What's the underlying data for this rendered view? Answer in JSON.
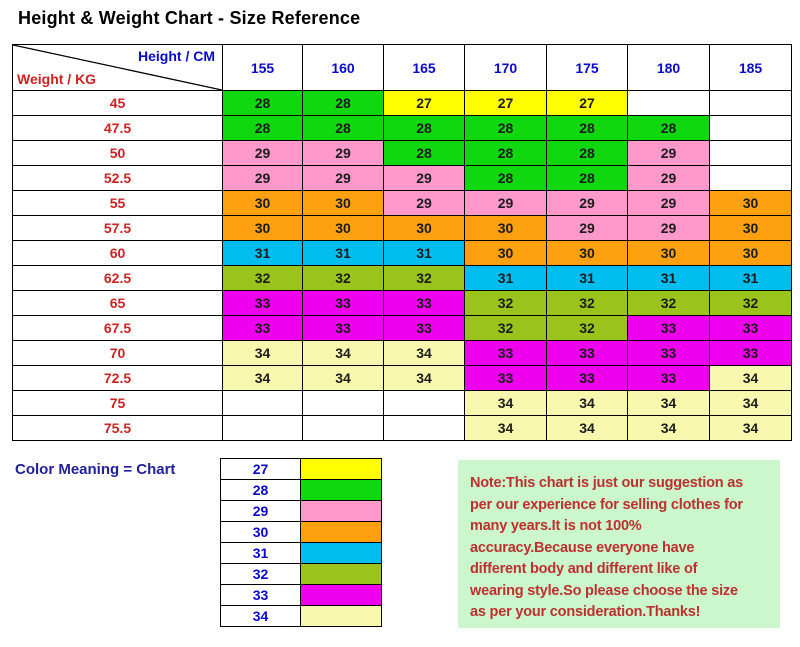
{
  "chart_data": {
    "type": "table",
    "title": "Height & Weight Chart - Size Reference",
    "x_header": "Height / CM",
    "y_header": "Weight / KG",
    "heights_cm": [
      "155",
      "160",
      "165",
      "170",
      "175",
      "180",
      "185"
    ],
    "weights_kg": [
      "45",
      "47.5",
      "50",
      "52.5",
      "55",
      "57.5",
      "60",
      "62.5",
      "65",
      "67.5",
      "70",
      "72.5",
      "75",
      "75.5"
    ],
    "sizes": [
      [
        28,
        28,
        27,
        27,
        27,
        null,
        null
      ],
      [
        28,
        28,
        28,
        28,
        28,
        28,
        null
      ],
      [
        29,
        29,
        28,
        28,
        28,
        29,
        null
      ],
      [
        29,
        29,
        29,
        28,
        28,
        29,
        null
      ],
      [
        30,
        30,
        29,
        29,
        29,
        29,
        30
      ],
      [
        30,
        30,
        30,
        30,
        29,
        29,
        30
      ],
      [
        31,
        31,
        31,
        30,
        30,
        30,
        30
      ],
      [
        32,
        32,
        32,
        31,
        31,
        31,
        31
      ],
      [
        33,
        33,
        33,
        32,
        32,
        32,
        32
      ],
      [
        33,
        33,
        33,
        32,
        32,
        33,
        33
      ],
      [
        34,
        34,
        34,
        33,
        33,
        33,
        33
      ],
      [
        34,
        34,
        34,
        33,
        33,
        33,
        34
      ],
      [
        null,
        null,
        null,
        34,
        34,
        34,
        34
      ],
      [
        null,
        null,
        null,
        34,
        34,
        34,
        34
      ]
    ]
  },
  "legend": {
    "title": "Color Meaning = Chart",
    "items": [
      {
        "size": "27",
        "color": "yellow"
      },
      {
        "size": "28",
        "color": "green"
      },
      {
        "size": "29",
        "color": "pink"
      },
      {
        "size": "30",
        "color": "orange"
      },
      {
        "size": "31",
        "color": "cyan"
      },
      {
        "size": "32",
        "color": "olive"
      },
      {
        "size": "33",
        "color": "magenta"
      },
      {
        "size": "34",
        "color": "cream"
      }
    ]
  },
  "note": {
    "lines": [
      "Note:This chart is just our suggestion as",
      "per our experience for selling clothes for",
      "many years.It is not 100%",
      "accuracy.Because everyone have",
      "different body and different like of",
      "wearing style.So please choose the size",
      "as per your consideration.Thanks!"
    ]
  },
  "colors": {
    "yellow": "#ffff00",
    "green": "#0fd80f",
    "pink": "#ff99cc",
    "orange": "#ffa011",
    "cyan": "#00bdf0",
    "olive": "#9ac41c",
    "magenta": "#ee00ee",
    "cream": "#f7f7ad"
  },
  "ui_colors": {
    "page_bg": "#ffffff",
    "title_black": "#000000",
    "header_number_blue": "#0a0acc",
    "weight_label_red": "#cc2222",
    "cell_text": "#1c1c1c",
    "grid_border": "#000000",
    "legend_title_navy": "#212199",
    "note_bg_green": "#ccf6cc",
    "note_text_red": "#bd3030"
  }
}
